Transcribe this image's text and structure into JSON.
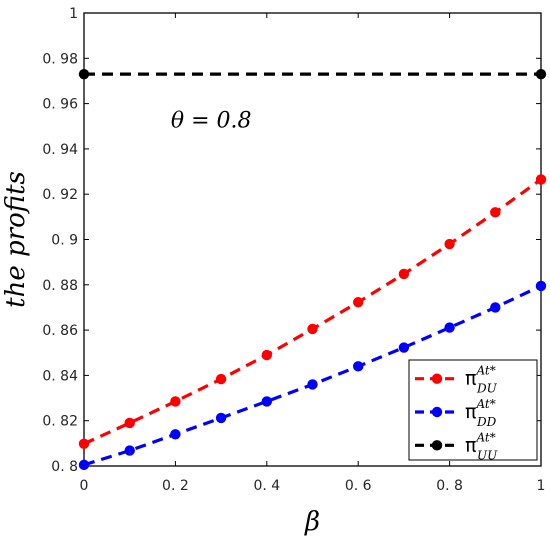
{
  "chart_data": {
    "type": "line",
    "xlabel": "β",
    "ylabel": "the profits",
    "xlim": [
      0,
      1
    ],
    "ylim": [
      0.8,
      1
    ],
    "x_ticks": [
      0,
      0.2,
      0.4,
      0.6,
      0.8,
      1
    ],
    "x_tick_labels": [
      "0",
      "0. 2",
      "0. 4",
      "0. 6",
      "0. 8",
      "1"
    ],
    "y_ticks": [
      0.8,
      0.82,
      0.84,
      0.86,
      0.88,
      0.9,
      0.92,
      0.94,
      0.96,
      0.98,
      1
    ],
    "y_tick_labels": [
      "0. 8",
      "0. 82",
      "0. 84",
      "0. 86",
      "0. 88",
      "0. 9",
      "0. 92",
      "0. 94",
      "0. 96",
      "0. 98",
      "1"
    ],
    "grid": false,
    "annotation": "θ = 0.8",
    "legend_position": "bottom-right",
    "series": [
      {
        "symbol": "π",
        "superscript": "At*",
        "subscript": "DU",
        "color": "#ff0000",
        "x": [
          0,
          0.1,
          0.2,
          0.3,
          0.4,
          0.5,
          0.6,
          0.7,
          0.8,
          0.9,
          1
        ],
        "y": [
          0.8098,
          0.819,
          0.8285,
          0.8384,
          0.849,
          0.8605,
          0.8723,
          0.8848,
          0.898,
          0.912,
          0.9265
        ]
      },
      {
        "symbol": "π",
        "superscript": "At*",
        "subscript": "DD",
        "color": "#0000ff",
        "x": [
          0,
          0.1,
          0.2,
          0.3,
          0.4,
          0.5,
          0.6,
          0.7,
          0.8,
          0.9,
          1
        ],
        "y": [
          0.8005,
          0.8068,
          0.814,
          0.8212,
          0.8285,
          0.836,
          0.844,
          0.8523,
          0.8611,
          0.87,
          0.8795
        ]
      },
      {
        "symbol": "π",
        "superscript": "At*",
        "subscript": "UU",
        "color": "#000000",
        "x": [
          0,
          1
        ],
        "y": [
          0.973,
          0.973
        ]
      }
    ]
  }
}
